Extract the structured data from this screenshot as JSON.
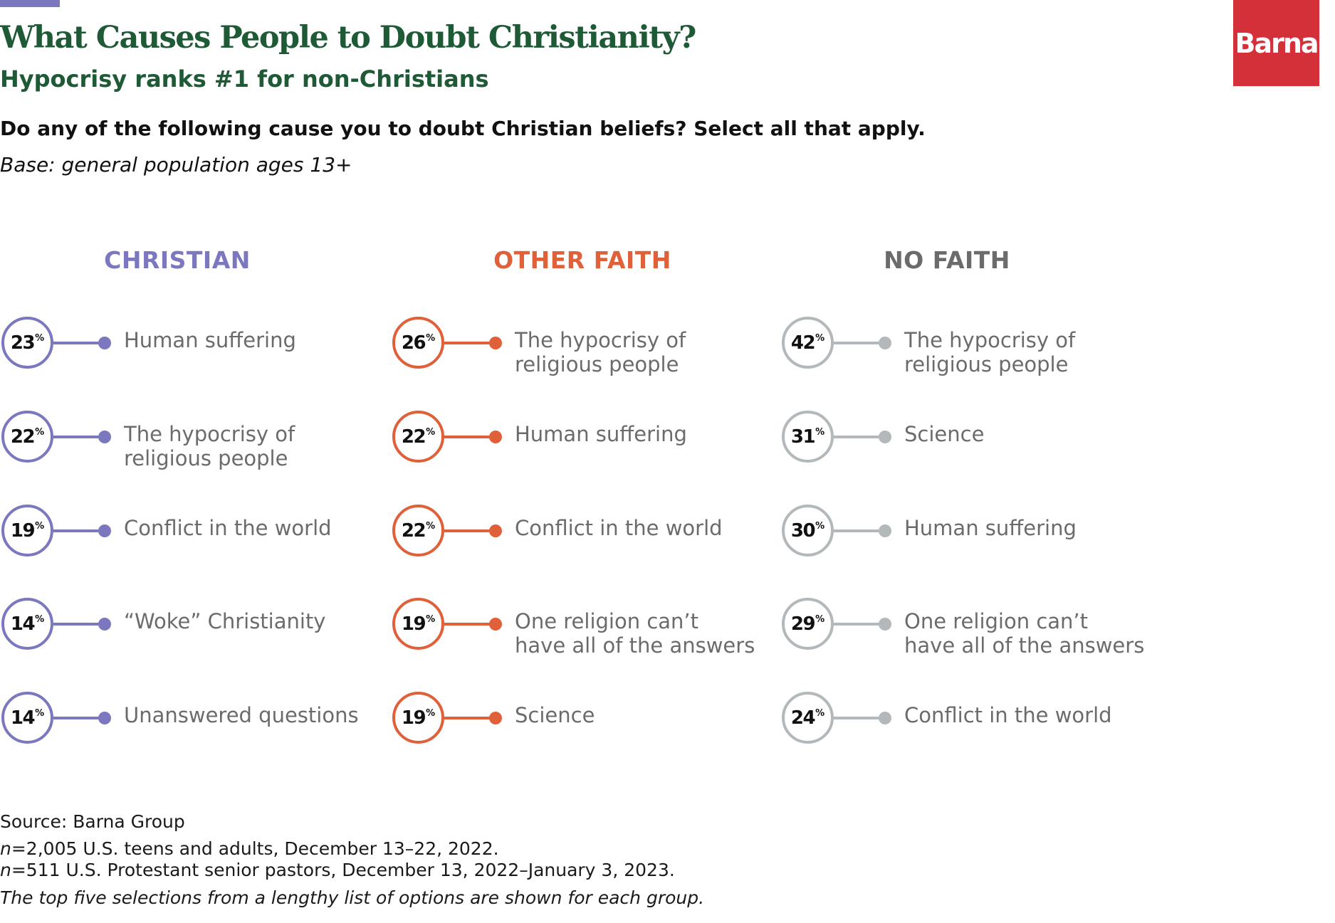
{
  "header": {
    "title": "What Causes People to Doubt Christianity?",
    "subtitle": "Hypocrisy ranks #1 for non-Christians",
    "question": "Do any of the following cause you to doubt Christian beliefs? Select all that apply.",
    "base": "Base: general population ages 13+",
    "logo_text": "Barna"
  },
  "chart_data": {
    "type": "ranked-list",
    "unit": "%",
    "groups": [
      {
        "name": "CHRISTIAN",
        "color": "#7b78c0",
        "items": [
          {
            "label": "Human suffering",
            "value": 23
          },
          {
            "label": "The hypocrisy of\nreligious people",
            "value": 22
          },
          {
            "label": "Conflict in the world",
            "value": 19
          },
          {
            "label": "“Woke” Christianity",
            "value": 14
          },
          {
            "label": "Unanswered questions",
            "value": 14
          }
        ]
      },
      {
        "name": "OTHER FAITH",
        "color": "#e0603a",
        "items": [
          {
            "label": "The hypocrisy of\nreligious people",
            "value": 26
          },
          {
            "label": "Human suffering",
            "value": 22
          },
          {
            "label": "Conflict in the world",
            "value": 22
          },
          {
            "label": "One religion can’t\nhave all of the answers",
            "value": 19
          },
          {
            "label": "Science",
            "value": 19
          }
        ]
      },
      {
        "name": "NO FAITH",
        "color": "#b3b8bb",
        "title_color": "#6b6b6b",
        "items": [
          {
            "label": "The hypocrisy of\nreligious people",
            "value": 42
          },
          {
            "label": "Science",
            "value": 31
          },
          {
            "label": "Human suffering",
            "value": 30
          },
          {
            "label": "One religion can’t\nhave all of the answers",
            "value": 29
          },
          {
            "label": "Conflict in the world",
            "value": 24
          }
        ]
      }
    ]
  },
  "footer": {
    "source": "Source: Barna Group",
    "n1_prefix": "n",
    "n1_text": "=2,005 U.S. teens and adults, December 13–22, 2022.",
    "n2_prefix": "n",
    "n2_text": "=511 U.S. Protestant senior pastors, December 13, 2022–January 3, 2023.",
    "note": "The top five selections from a lengthy list of options are shown for each group."
  }
}
